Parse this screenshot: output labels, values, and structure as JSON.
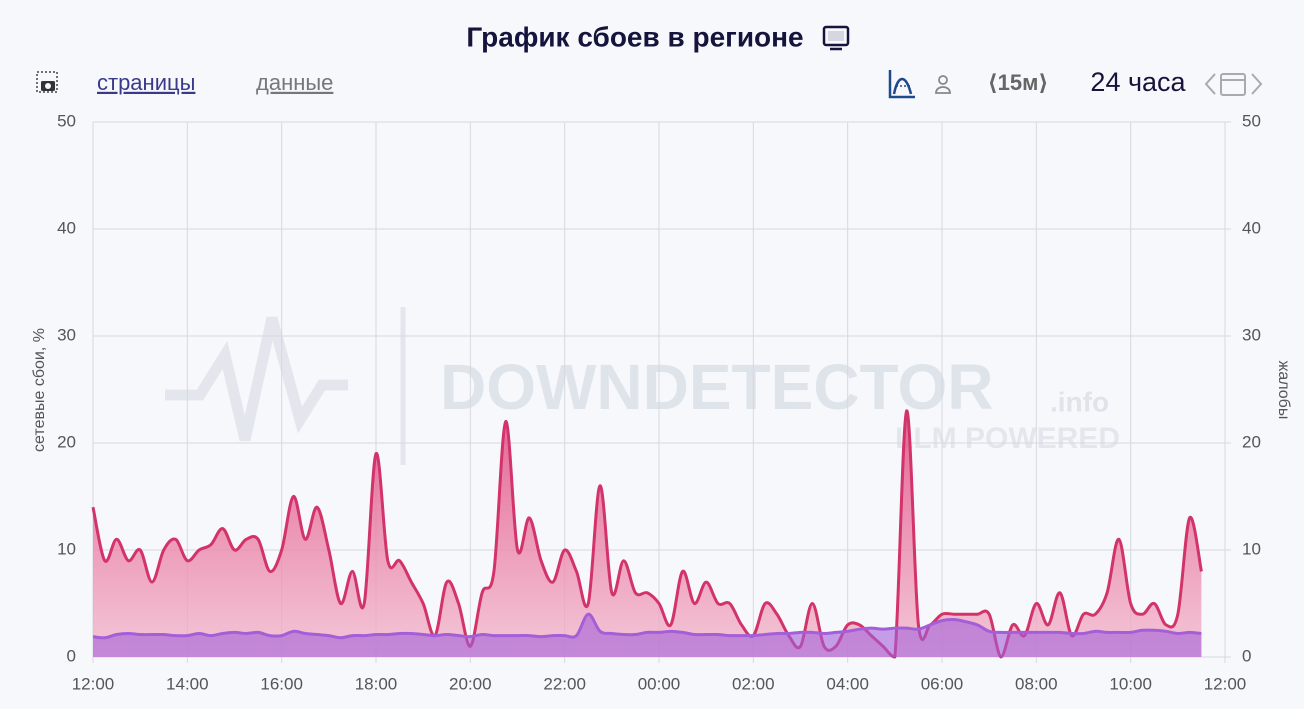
{
  "chart_data": {
    "type": "area",
    "title": "График сбоев в регионе",
    "toolbar": {
      "link_pages": "страницы",
      "link_data": "данные",
      "interval": "⟨15м⟩",
      "period": "24 часа"
    },
    "watermark": {
      "brand": "DOWNDETECTOR",
      "suffix": ".info",
      "tagline": "LLM POWERED"
    },
    "y_label": "сетевые сбои, %",
    "y2_label": "жалобы",
    "x": [
      0,
      0.25,
      0.5,
      0.75,
      1,
      1.25,
      1.5,
      1.75,
      2,
      2.25,
      2.5,
      2.75,
      3,
      3.25,
      3.5,
      3.75,
      4,
      4.25,
      4.5,
      4.75,
      5,
      5.25,
      5.5,
      5.75,
      6,
      6.25,
      6.5,
      6.75,
      7,
      7.25,
      7.5,
      7.75,
      8,
      8.25,
      8.5,
      8.75,
      9,
      9.25,
      9.5,
      9.75,
      10,
      10.25,
      10.5,
      10.75,
      11,
      11.25,
      11.5,
      11.75,
      12,
      12.25,
      12.5,
      12.75,
      13,
      13.25,
      13.5,
      13.75,
      14,
      14.25,
      14.5,
      14.75,
      15,
      15.25,
      15.5,
      15.75,
      16,
      16.25,
      16.5,
      16.75,
      17,
      17.25,
      17.5,
      17.75,
      18,
      18.25,
      18.5,
      18.75,
      19,
      19.25,
      19.5,
      19.75,
      20,
      20.25,
      20.5,
      20.75,
      21,
      21.25,
      21.5,
      21.75,
      22,
      22.25,
      22.5,
      22.75,
      23,
      23.25,
      23.5
    ],
    "series": [
      {
        "name": "сетевые сбои, %",
        "color": "#d23369",
        "values": [
          14,
          9,
          11,
          9,
          10,
          7,
          10,
          11,
          9,
          10,
          10.5,
          12,
          10,
          11,
          11,
          8,
          10,
          15,
          11,
          14,
          10,
          5,
          8,
          5,
          19,
          9,
          9,
          7,
          5,
          2,
          7,
          5,
          1,
          6,
          8,
          22,
          10,
          13,
          9,
          7,
          10,
          8,
          5,
          16,
          6,
          9,
          6,
          6,
          5,
          3,
          8,
          5,
          7,
          5,
          5,
          3,
          2,
          5,
          4,
          2,
          1,
          5,
          1,
          1,
          3,
          3,
          2,
          1,
          0,
          23,
          3,
          3,
          4,
          4,
          4,
          4,
          4,
          0,
          3,
          2,
          5,
          3,
          6,
          2,
          4,
          4,
          6,
          11,
          5,
          4,
          5,
          3,
          4,
          13,
          8
        ]
      },
      {
        "name": "жалобы",
        "color": "#a45fd8",
        "axis": "y2",
        "values": [
          1.9,
          1.8,
          2.1,
          2.2,
          2.1,
          2.1,
          2.1,
          2,
          2,
          2.2,
          2,
          2.2,
          2.3,
          2.2,
          2.3,
          2,
          2,
          2.4,
          2.2,
          2.1,
          2,
          1.8,
          2,
          2,
          2.1,
          2.1,
          2.2,
          2.2,
          2.1,
          2,
          2.1,
          2,
          1.9,
          2.1,
          2,
          2,
          2,
          2,
          1.9,
          2,
          2,
          2,
          4,
          2.4,
          2.2,
          2.1,
          2.1,
          2.3,
          2.3,
          2.4,
          2.3,
          2.1,
          2.1,
          2.1,
          2,
          2,
          2,
          2.1,
          2.2,
          2.2,
          2.3,
          2.3,
          2.2,
          2.3,
          2.4,
          2.6,
          2.7,
          2.6,
          2.7,
          2.7,
          2.6,
          3,
          3.4,
          3.5,
          3.3,
          3,
          2.4,
          2.3,
          2.3,
          2.3,
          2.3,
          2.3,
          2.3,
          2.2,
          2.2,
          2.4,
          2.3,
          2.3,
          2.3,
          2.5,
          2.5,
          2.4,
          2.2,
          2.3,
          2.2
        ]
      }
    ],
    "xlim": [
      0,
      24
    ],
    "xticks": [
      {
        "value": 0,
        "label": "12:00"
      },
      {
        "value": 2,
        "label": "14:00"
      },
      {
        "value": 4,
        "label": "16:00"
      },
      {
        "value": 6,
        "label": "18:00"
      },
      {
        "value": 8,
        "label": "20:00"
      },
      {
        "value": 10,
        "label": "22:00"
      },
      {
        "value": 12,
        "label": "00:00"
      },
      {
        "value": 14,
        "label": "02:00"
      },
      {
        "value": 16,
        "label": "04:00"
      },
      {
        "value": 18,
        "label": "06:00"
      },
      {
        "value": 20,
        "label": "08:00"
      },
      {
        "value": 22,
        "label": "10:00"
      },
      {
        "value": 24,
        "label": "12:00"
      }
    ],
    "ylim": [
      0,
      50
    ],
    "yticks": [
      0,
      10,
      20,
      30,
      40,
      50
    ],
    "y2lim": [
      0,
      50
    ],
    "y2ticks": [
      0,
      10,
      20,
      30,
      40,
      50
    ],
    "grid": true
  }
}
